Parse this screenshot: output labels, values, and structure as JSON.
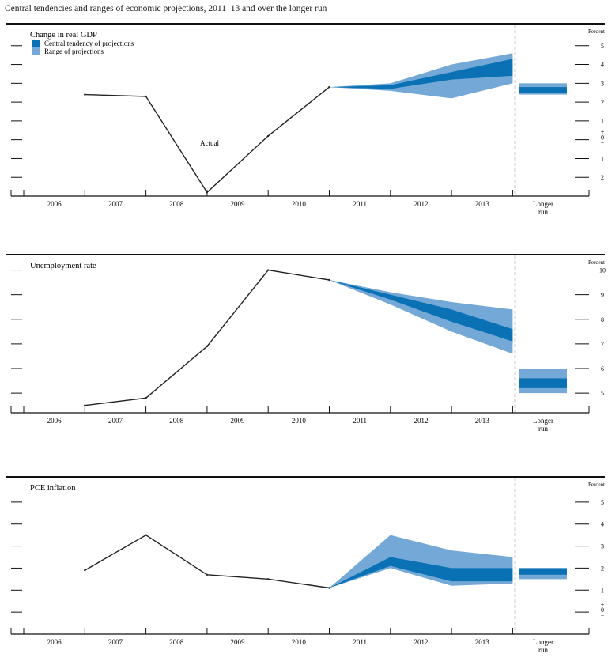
{
  "page": {
    "title": "Central tendencies and ranges of economic projections, 2011–13 and over the longer run"
  },
  "colors": {
    "central": "#0a72b4",
    "range": "#74a8d6",
    "line": "#222222"
  },
  "chart_data": [
    {
      "type": "area",
      "title": "Change in real GDP",
      "unit_label": "Percent",
      "annotation": "Actual",
      "legend": [
        "Central tendency of projections",
        "Range of projections"
      ],
      "legend_position": "top-left",
      "x_categories": [
        "2006",
        "2007",
        "2008",
        "2009",
        "2010",
        "2011",
        "2012",
        "2013"
      ],
      "longer_run_label": [
        "Longer",
        "run"
      ],
      "ylim": [
        -3,
        6
      ],
      "y_ticks": [
        5,
        4,
        3,
        2,
        1,
        0,
        -1,
        -2
      ],
      "y_tick_labels": [
        "5",
        "4",
        "3",
        "2",
        "1",
        "+\n0\n−",
        "1",
        "2"
      ],
      "actual": {
        "x": [
          2006,
          2007,
          2008,
          2009,
          2010
        ],
        "y": [
          2.4,
          2.3,
          -2.8,
          0.2,
          2.8
        ]
      },
      "range": {
        "x": [
          2010,
          2011,
          2012,
          2013
        ],
        "low": [
          2.8,
          2.6,
          2.2,
          3.0
        ],
        "high": [
          2.8,
          3.0,
          4.0,
          4.6
        ]
      },
      "central_tendency": {
        "x": [
          2010,
          2011,
          2012,
          2013
        ],
        "low": [
          2.8,
          2.7,
          3.2,
          3.4
        ],
        "high": [
          2.8,
          2.9,
          3.6,
          4.3
        ]
      },
      "longer_run": {
        "range": [
          2.4,
          3.0
        ],
        "central_tendency": [
          2.5,
          2.8
        ]
      }
    },
    {
      "type": "area",
      "title": "Unemployment rate",
      "unit_label": "Percent",
      "x_categories": [
        "2006",
        "2007",
        "2008",
        "2009",
        "2010",
        "2011",
        "2012",
        "2013"
      ],
      "longer_run_label": [
        "Longer",
        "run"
      ],
      "ylim": [
        4.2,
        10.5
      ],
      "y_ticks": [
        10,
        9,
        8,
        7,
        6,
        5
      ],
      "y_tick_labels": [
        "10",
        "9",
        "8",
        "7",
        "6",
        "5"
      ],
      "actual": {
        "x": [
          2006,
          2007,
          2008,
          2009,
          2010
        ],
        "y": [
          4.5,
          4.8,
          6.9,
          10.0,
          9.6
        ]
      },
      "range": {
        "x": [
          2010,
          2011,
          2012,
          2013
        ],
        "low": [
          9.6,
          8.6,
          7.5,
          6.6
        ],
        "high": [
          9.6,
          9.1,
          8.7,
          8.4
        ]
      },
      "central_tendency": {
        "x": [
          2010,
          2011,
          2012,
          2013
        ],
        "low": [
          9.6,
          8.8,
          7.9,
          7.1
        ],
        "high": [
          9.6,
          9.0,
          8.4,
          7.6
        ]
      },
      "longer_run": {
        "range": [
          5.0,
          6.0
        ],
        "central_tendency": [
          5.2,
          5.6
        ]
      }
    },
    {
      "type": "area",
      "title": "PCE inflation",
      "unit_label": "Percent",
      "x_categories": [
        "2006",
        "2007",
        "2008",
        "2009",
        "2010",
        "2011",
        "2012",
        "2013"
      ],
      "longer_run_label": [
        "Longer",
        "run"
      ],
      "ylim": [
        -1,
        6
      ],
      "y_ticks": [
        5,
        4,
        3,
        2,
        1,
        0
      ],
      "y_tick_labels": [
        "5",
        "4",
        "3",
        "2",
        "1",
        "+\n0\n−"
      ],
      "actual": {
        "x": [
          2006,
          2007,
          2008,
          2009,
          2010
        ],
        "y": [
          1.9,
          3.5,
          1.7,
          1.5,
          1.1
        ]
      },
      "range": {
        "x": [
          2010,
          2011,
          2012,
          2013
        ],
        "low": [
          1.1,
          2.0,
          1.2,
          1.3
        ],
        "high": [
          1.1,
          3.5,
          2.8,
          2.5
        ]
      },
      "central_tendency": {
        "x": [
          2010,
          2011,
          2012,
          2013
        ],
        "low": [
          1.1,
          2.1,
          1.4,
          1.4
        ],
        "high": [
          1.1,
          2.5,
          2.0,
          2.0
        ]
      },
      "longer_run": {
        "range": [
          1.5,
          2.0
        ],
        "central_tendency": [
          1.7,
          2.0
        ]
      }
    }
  ]
}
